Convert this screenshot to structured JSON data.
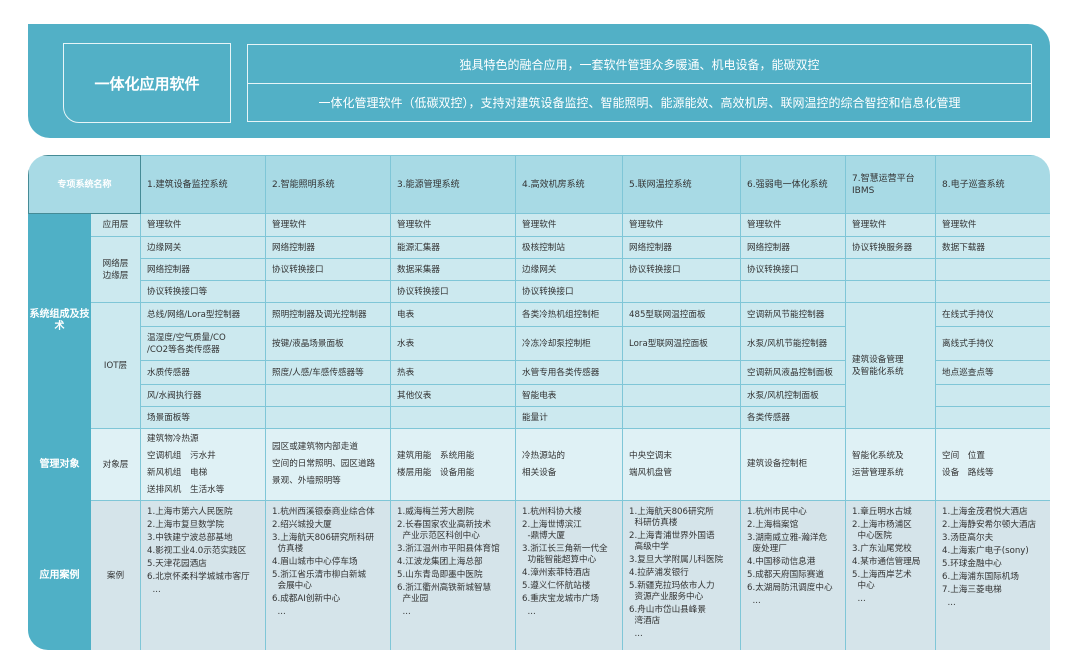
{
  "banner": {
    "title": "一体化应用软件",
    "line1": "独具特色的融合应用，一套软件管理众多暖通、机电设备，能碳双控",
    "line2": "一体化管理软件（低碳双控），支持对建筑设备监控、智能照明、能源能效、高效机房、联网温控的综合智控和信息化管理"
  },
  "table": {
    "header_label": "专项系统名称",
    "categories": {
      "composition": "系统组成及技术",
      "management": "管理对象",
      "cases": "应用案例"
    },
    "layers": {
      "app": "应用层",
      "network": "网络层\n边缘层",
      "iot": "IOT层",
      "object": "对象层",
      "case": "案例"
    },
    "colors": {
      "banner": "#52b0c6",
      "header_dark": "#458b96",
      "category": "#4fb0c6",
      "header": "#a8dae5",
      "cell": "#cce9ef",
      "object_row": "#dff1f5",
      "case_row": "#d5e4ea"
    },
    "columns": [
      {
        "name": "1.建筑设备监控系统",
        "app": "管理软件",
        "net": [
          "边缘网关",
          "网络控制器",
          "协议转换接口等"
        ],
        "iot": [
          "总线/网络/Lora型控制器",
          "温湿度/空气质量/CO\n/CO2等各类传感器",
          "水质传感器",
          "风/水阀执行器",
          "场景面板等"
        ],
        "obj": [
          "建筑物冷热源",
          "空调机组　污水井",
          "新风机组　电梯",
          "送排风机　生活水等"
        ],
        "cases": [
          "1.上海市第六人民医院",
          "2.上海市复旦数学院",
          "3.中铁建宁波总部基地",
          "4.影视工业4.0示范实践区",
          "5.天津花园酒店",
          "6.北京怀柔科学城城市客厅",
          "  ..."
        ]
      },
      {
        "name": "2.智能照明系统",
        "app": "管理软件",
        "net": [
          "网络控制器",
          "协议转换接口",
          ""
        ],
        "iot": [
          "照明控制器及调光控制器",
          "按键/液晶场景面板",
          "照度/人感/车感传感器等",
          "",
          ""
        ],
        "obj": [
          "园区或建筑物内部走道",
          "空间的日常照明、园区道路",
          "景观、外墙照明等"
        ],
        "cases": [
          "1.杭州西溪银泰商业综合体",
          "2.绍兴城投大厦",
          "3.上海航天806研究所科研\n  仿真楼",
          "4.眉山城市中心停车场",
          "5.浙江省乐清市柳白新城\n  会展中心",
          "6.成都AI创新中心",
          "  ..."
        ]
      },
      {
        "name": "3.能源管理系统",
        "app": "管理软件",
        "net": [
          "能源汇集器",
          "数据采集器",
          "协议转换接口"
        ],
        "iot": [
          "电表",
          "水表",
          "热表",
          "其他仪表",
          ""
        ],
        "obj": [
          "建筑用能　系统用能",
          "楼层用能　设备用能"
        ],
        "cases": [
          "1.威海梅兰芳大剧院",
          "2.长春国家农业高新技术\n  产业示范区科创中心",
          "3.浙江温州市平阳县体育馆",
          "4.江波龙集团上海总部",
          "5.山东青岛即墨中医院",
          "6.浙江衢州高铁新城智慧\n  产业园",
          "  ..."
        ]
      },
      {
        "name": "4.高效机房系统",
        "app": "管理软件",
        "net": [
          "极核控制站",
          "边缘网关",
          "协议转换接口"
        ],
        "iot": [
          "各类冷热机组控制柜",
          "冷冻冷却泵控制柜",
          "水管专用各类传感器",
          "智能电表",
          "能量计"
        ],
        "obj": [
          "冷热源站的",
          "相关设备"
        ],
        "cases": [
          "1.杭州科协大楼",
          "2.上海世博滨江\n  -鼎博大厦",
          "3.浙江长三角新一代全\n  功能智能超算中心",
          "4.漳州索菲特酒店",
          "5.遵义仁怀航站楼",
          "6.重庆宝龙城市广场",
          "  ..."
        ]
      },
      {
        "name": "5.联网温控系统",
        "app": "管理软件",
        "net": [
          "网络控制器",
          "协议转换接口",
          ""
        ],
        "iot": [
          "485型联网温控面板",
          "Lora型联网温控面板",
          "",
          "",
          ""
        ],
        "obj": [
          "中央空调末",
          "端风机盘管"
        ],
        "cases": [
          "1.上海航天806研究所\n  科研仿真楼",
          "2.上海青浦世界外国语\n  高级中学",
          "3.复旦大学附属儿科医院",
          "4.拉萨浦发银行",
          "5.新疆克拉玛依市人力\n  资源产业服务中心",
          "6.舟山市岱山县峰景\n  湾酒店",
          "  ..."
        ]
      },
      {
        "name": "6.强弱电一体化系统",
        "app": "管理软件",
        "net": [
          "网络控制器",
          "协议转换接口",
          ""
        ],
        "iot": [
          "空调新风节能控制器",
          "水泵/风机节能控制器",
          "空调新风液晶控制面板",
          "水泵/风机控制面板",
          "各类传感器"
        ],
        "obj": [
          "建筑设备控制柜"
        ],
        "cases": [
          "1.杭州市民中心",
          "2.上海档案馆",
          "3.湖南威立雅-瀚洋危\n  废处理厂",
          "4.中国移动信息港",
          "5.成都天府国际赛道",
          "6.太湖局防汛调度中心",
          "  ..."
        ]
      },
      {
        "name": "7.智慧运营平台\n  IBMS",
        "app": "管理软件",
        "net": [
          "协议转换服务器",
          "",
          ""
        ],
        "iot_merged": "建筑设备管理\n及智能化系统",
        "obj": [
          "智能化系统及",
          "运营管理系统"
        ],
        "cases": [
          "1.章丘明水古城",
          "2.上海市杨浦区\n  中心医院",
          "3.广东汕尾党校",
          "4.某市通信管理局",
          "5.上海西岸艺术\n  中心",
          "  ..."
        ]
      },
      {
        "name": "8.电子巡查系统",
        "app": "管理软件",
        "net": [
          "数据下载器",
          "",
          ""
        ],
        "iot": [
          "在线式手持仪",
          "离线式手持仪",
          "地点巡查点等",
          "",
          ""
        ],
        "obj": [
          "空间　位置",
          "设备　路线等"
        ],
        "cases": [
          "1.上海金茂君悦大酒店",
          "2.上海静安希尔顿大酒店",
          "3.汤臣高尔夫",
          "4.上海索广电子(sony)",
          "5.环球金融中心",
          "6.上海浦东国际机场",
          "7.上海三菱电梯",
          "  ..."
        ]
      }
    ]
  }
}
